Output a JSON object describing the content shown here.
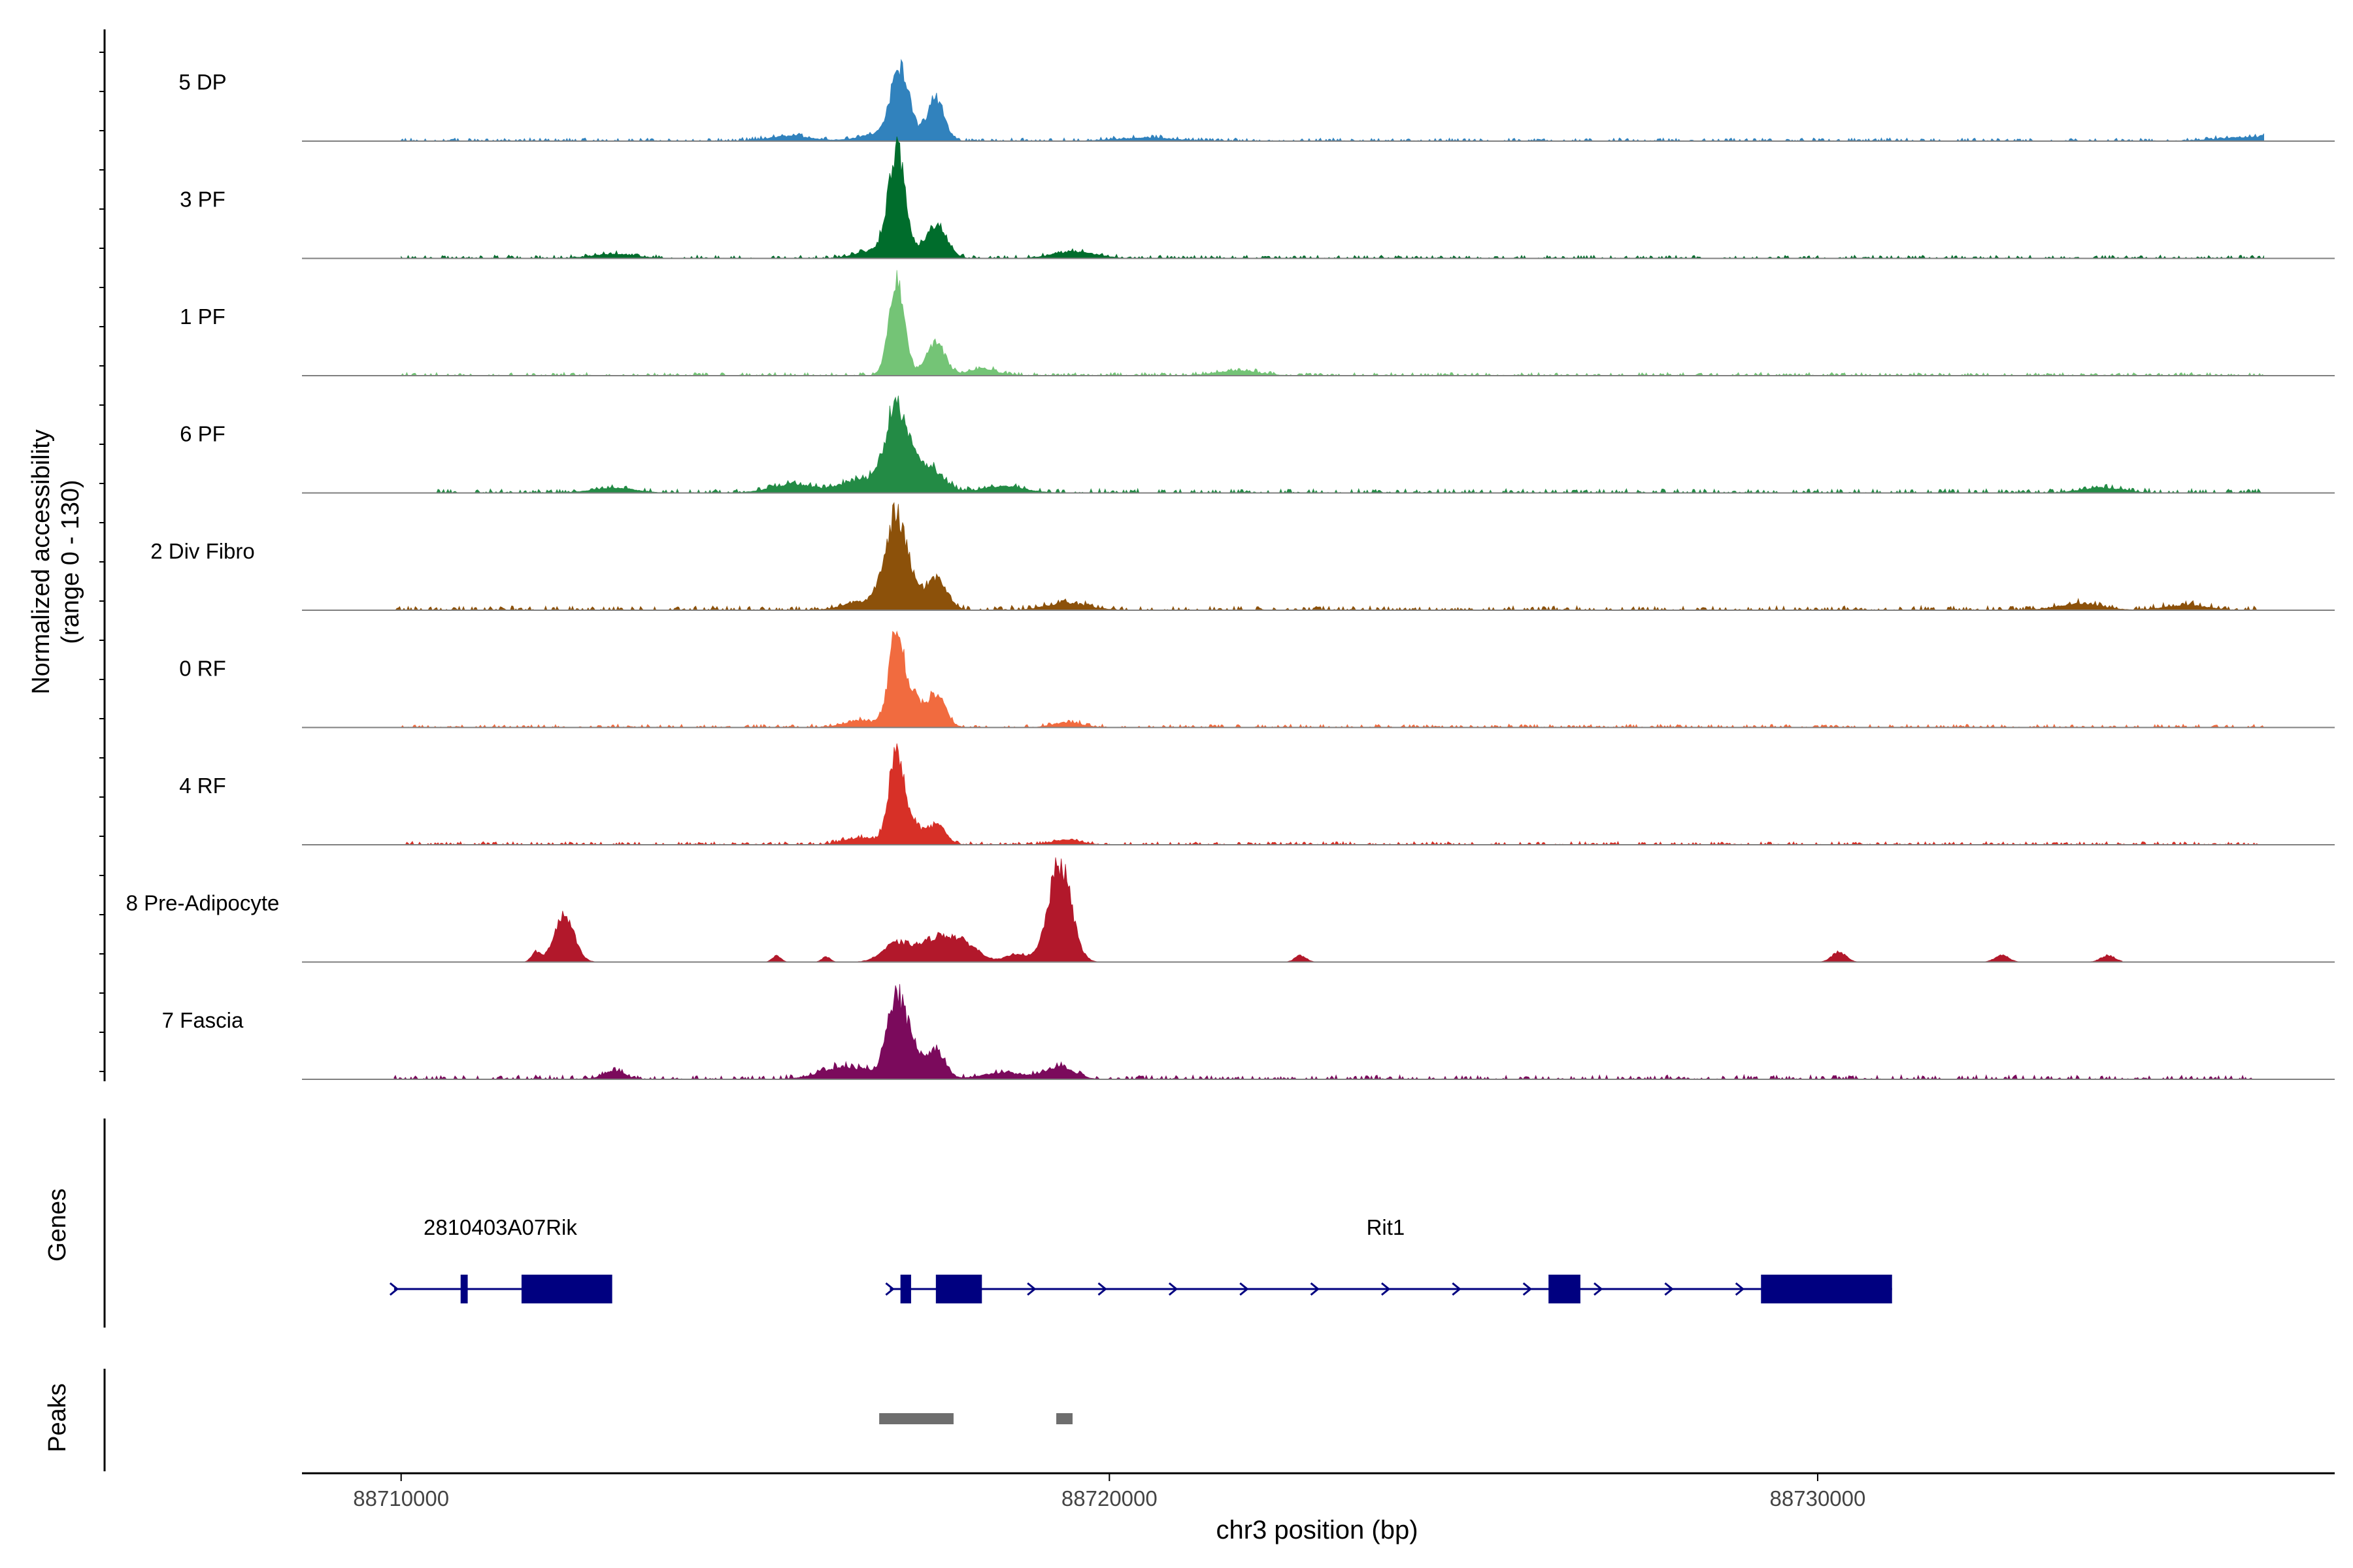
{
  "chart_data": {
    "type": "area",
    "title": "",
    "ylabel_line1": "Normalized accessibility",
    "ylabel_line2": "(range 0 - 130)",
    "xlabel": "chr3 position (bp)",
    "xlim": [
      88708600,
      88737300
    ],
    "ylim": [
      0,
      130
    ],
    "x_ticks": [
      88710000,
      88720000,
      88730000
    ],
    "x_tick_labels": [
      "88710000",
      "88720000",
      "88730000"
    ],
    "tracks": [
      {
        "name": "5 DP",
        "color": "#3182BD",
        "peaks": [
          [
            88717050,
            88,
            130
          ],
          [
            88717550,
            50,
            120
          ],
          [
            88716700,
            8,
            250
          ],
          [
            88715500,
            6,
            300
          ],
          [
            88720500,
            4,
            400
          ],
          [
            88736200,
            5,
            500
          ]
        ],
        "noise": 3,
        "range": [
          88710000,
          88736300
        ]
      },
      {
        "name": "3 PF",
        "color": "#006D2C",
        "peaks": [
          [
            88717000,
            125,
            120
          ],
          [
            88717550,
            40,
            150
          ],
          [
            88716700,
            10,
            250
          ],
          [
            88719500,
            8,
            300
          ],
          [
            88713000,
            5,
            300
          ]
        ],
        "noise": 3,
        "range": [
          88710000,
          88736300
        ]
      },
      {
        "name": "1 PF",
        "color": "#74C476",
        "peaks": [
          [
            88717000,
            112,
            110
          ],
          [
            88717550,
            40,
            130
          ],
          [
            88718200,
            8,
            200
          ],
          [
            88721800,
            6,
            300
          ]
        ],
        "noise": 3,
        "range": [
          88710000,
          88736300
        ]
      },
      {
        "name": "6 PF",
        "color": "#238B45",
        "peaks": [
          [
            88717000,
            100,
            160
          ],
          [
            88717450,
            30,
            200
          ],
          [
            88716500,
            15,
            300
          ],
          [
            88715500,
            10,
            300
          ],
          [
            88718500,
            8,
            300
          ],
          [
            88713000,
            6,
            300
          ],
          [
            88734000,
            6,
            300
          ]
        ],
        "noise": 4,
        "range": [
          88710500,
          88736300
        ]
      },
      {
        "name": "2 Div Fibro",
        "color": "#8C510A",
        "peaks": [
          [
            88717000,
            115,
            160
          ],
          [
            88717550,
            40,
            150
          ],
          [
            88716500,
            10,
            250
          ],
          [
            88719400,
            8,
            300
          ],
          [
            88733700,
            8,
            300
          ],
          [
            88735200,
            6,
            300
          ]
        ],
        "noise": 4,
        "range": [
          88709900,
          88736300
        ]
      },
      {
        "name": "0 RF",
        "color": "#F16B3F",
        "peaks": [
          [
            88717000,
            112,
            110
          ],
          [
            88717250,
            30,
            90
          ],
          [
            88717550,
            40,
            130
          ],
          [
            88716500,
            8,
            250
          ],
          [
            88719400,
            6,
            200
          ]
        ],
        "noise": 3,
        "range": [
          88710000,
          88736300
        ]
      },
      {
        "name": "4 RF",
        "color": "#D73027",
        "peaks": [
          [
            88717000,
            112,
            110
          ],
          [
            88717250,
            20,
            90
          ],
          [
            88717550,
            25,
            130
          ],
          [
            88716500,
            8,
            250
          ],
          [
            88719400,
            6,
            200
          ]
        ],
        "noise": 3,
        "range": [
          88710000,
          88736300
        ]
      },
      {
        "name": "8 Pre-Adipocyte",
        "color": "#B2182B",
        "peaks": [
          [
            88719300,
            118,
            160
          ],
          [
            88712300,
            55,
            140
          ],
          [
            88711900,
            12,
            60
          ],
          [
            88717600,
            30,
            250
          ],
          [
            88717000,
            22,
            200
          ],
          [
            88718000,
            15,
            200
          ],
          [
            88718700,
            10,
            150
          ],
          [
            88730300,
            12,
            100
          ],
          [
            88732600,
            8,
            100
          ],
          [
            88734100,
            8,
            100
          ],
          [
            88722700,
            8,
            80
          ],
          [
            88715300,
            8,
            60
          ],
          [
            88716000,
            6,
            60
          ]
        ],
        "noise": 0,
        "range": [
          88711700,
          88734300
        ]
      },
      {
        "name": "7 Fascia",
        "color": "#7B0A5C",
        "peaks": [
          [
            88717000,
            100,
            130
          ],
          [
            88717250,
            30,
            90
          ],
          [
            88717550,
            35,
            130
          ],
          [
            88716300,
            15,
            350
          ],
          [
            88719300,
            15,
            200
          ],
          [
            88713000,
            10,
            150
          ],
          [
            88718500,
            8,
            300
          ]
        ],
        "noise": 4,
        "range": [
          88709900,
          88736300
        ]
      }
    ],
    "genes_label": "Genes",
    "peaks_label": "Peaks",
    "genes": [
      {
        "name": "2810403A07Rik",
        "label_x": 88711400,
        "start": 88709900,
        "end": 88712900,
        "exons": [
          [
            88710840,
            88710940
          ],
          [
            88711700,
            88712980
          ]
        ]
      },
      {
        "name": "Rit1",
        "label_x": 88723900,
        "start": 88716900,
        "end": 88731050,
        "exons": [
          [
            88717050,
            88717200
          ],
          [
            88717550,
            88718200
          ],
          [
            88726200,
            88726650
          ],
          [
            88729200,
            88731050
          ]
        ]
      }
    ],
    "peak_regions": [
      [
        88716750,
        88717800
      ],
      [
        88719250,
        88719480
      ]
    ]
  }
}
